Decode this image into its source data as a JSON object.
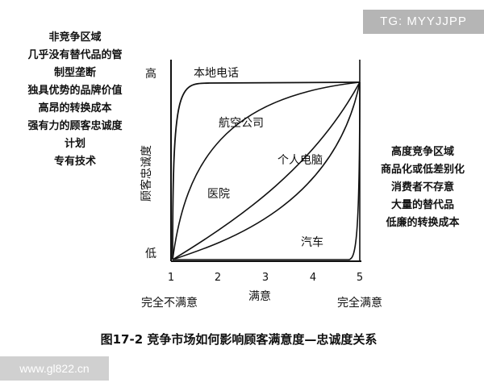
{
  "watermark_top": "TG: MYYJJPP",
  "watermark_bottom": "www.gl822.cn",
  "left_zone": {
    "title": "非竞争区域",
    "lines": [
      "几乎没有替代品的管",
      "制型垄断",
      "独具优势的品牌价值",
      "高昂的转换成本",
      "强有力的顾客忠诚度",
      "计划",
      "专有技术"
    ]
  },
  "right_zone": {
    "title": "高度竞争区域",
    "lines": [
      "商品化或低差别化",
      "消费者不存意",
      "大量的替代品",
      "低廉的转换成本"
    ]
  },
  "axes": {
    "y_title": "顾客忠诚度",
    "y_high": "高",
    "y_low": "低",
    "x_title": "满意",
    "x_ticks": [
      "1",
      "2",
      "3",
      "4",
      "5"
    ],
    "x_left_caption": "完全不满意",
    "x_right_caption": "完全满意"
  },
  "curves": {
    "local_phone": "本地电话",
    "airline": "航空公司",
    "pc": "个人电脑",
    "hospital": "医院",
    "car": "汽车"
  },
  "caption": "图17-2  竞争市场如何影响顾客满意度—忠诚度关系"
}
